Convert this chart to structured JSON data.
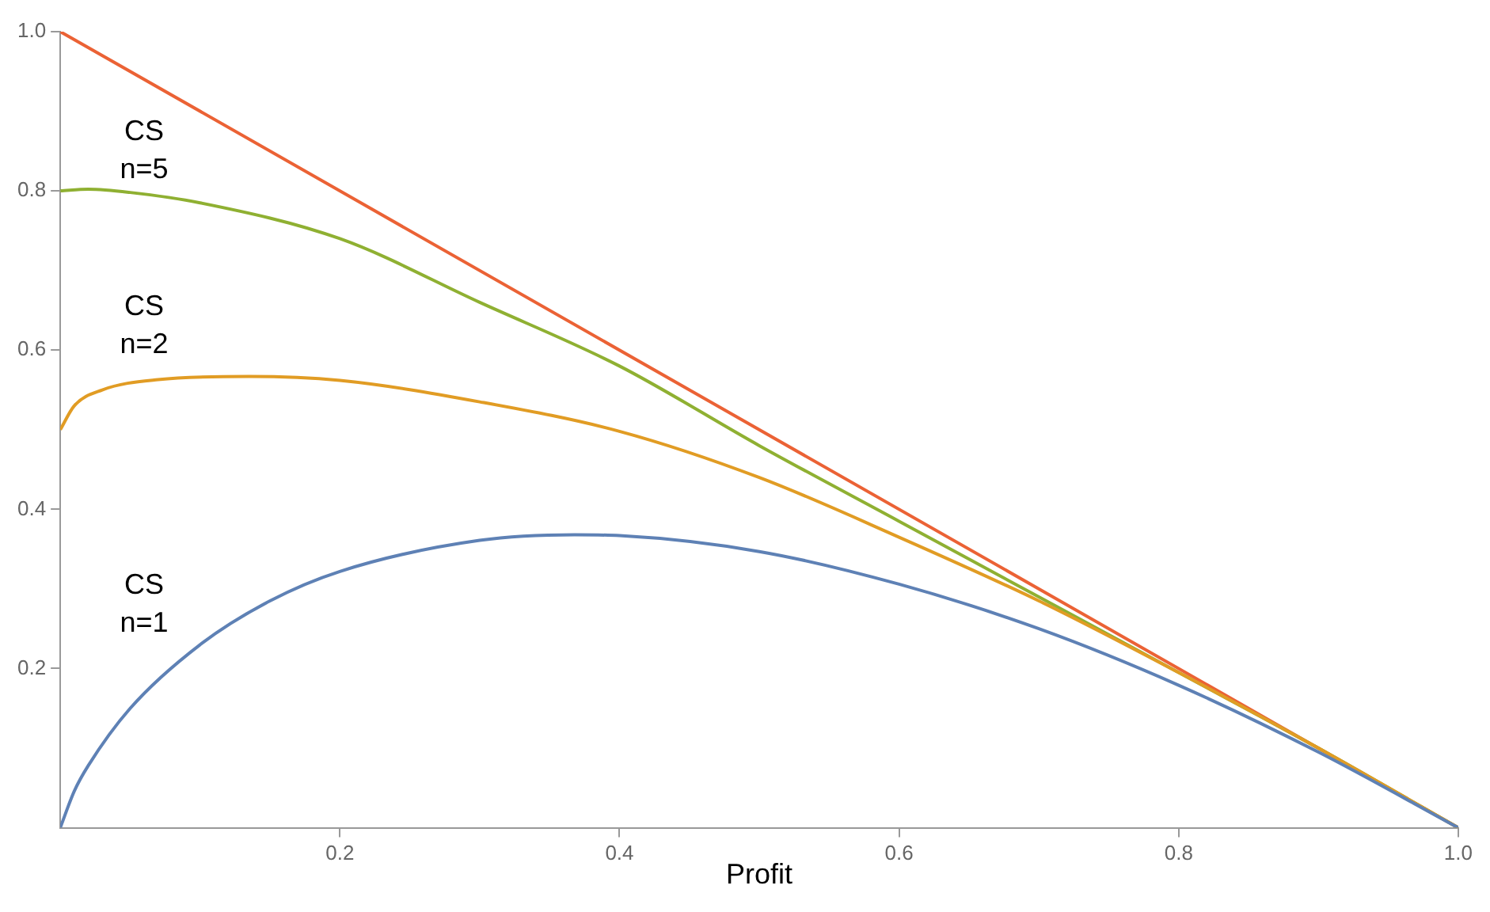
{
  "chart_data": {
    "type": "line",
    "xlabel": "Profit",
    "xlim": [
      0,
      1.0
    ],
    "xticks": [
      0.2,
      0.4,
      0.6,
      0.8,
      {
        "value": 1,
        "label": "1.0"
      }
    ],
    "ylim": [
      0,
      1.0
    ],
    "yticks": [
      0.2,
      0.4,
      0.6,
      0.8,
      {
        "value": 1,
        "label": "1.0"
      }
    ],
    "grid": false,
    "legend": false,
    "marker": "none",
    "series": [
      {
        "color": "#5e81b5",
        "x": [
          0,
          0.01,
          0.02,
          0.05,
          0.1,
          0.15,
          0.2,
          0.3,
          0.368,
          0.4,
          0.5,
          0.6,
          0.7,
          0.8,
          0.9,
          1.0
        ],
        "values": [
          0,
          0.046,
          0.078,
          0.15,
          0.23,
          0.285,
          0.322,
          0.361,
          0.368,
          0.367,
          0.347,
          0.306,
          0.25,
          0.179,
          0.095,
          0
        ]
      },
      {
        "color": "#e19c24",
        "x": [
          0,
          0.01,
          0.03,
          0.07,
          0.135,
          0.2,
          0.3,
          0.4,
          0.5,
          0.6,
          0.7,
          0.8,
          0.9,
          1.0
        ],
        "values": [
          0.5,
          0.53,
          0.55,
          0.563,
          0.567,
          0.562,
          0.535,
          0.498,
          0.44,
          0.365,
          0.285,
          0.195,
          0.1,
          0
        ]
      },
      {
        "color": "#8fb032",
        "x": [
          0,
          0.02,
          0.05,
          0.1,
          0.2,
          0.3,
          0.4,
          0.5,
          0.6,
          0.7,
          0.8,
          0.9,
          1.0
        ],
        "values": [
          0.8,
          0.802,
          0.798,
          0.785,
          0.74,
          0.66,
          0.58,
          0.48,
          0.385,
          0.29,
          0.195,
          0.1,
          0
        ]
      },
      {
        "color": "#eb6235",
        "x": [
          0,
          1.0
        ],
        "values": [
          1.0,
          0
        ]
      }
    ],
    "annotations": [
      "CS\nn=5",
      "CS\nn=2",
      "CS\nn=1"
    ]
  }
}
